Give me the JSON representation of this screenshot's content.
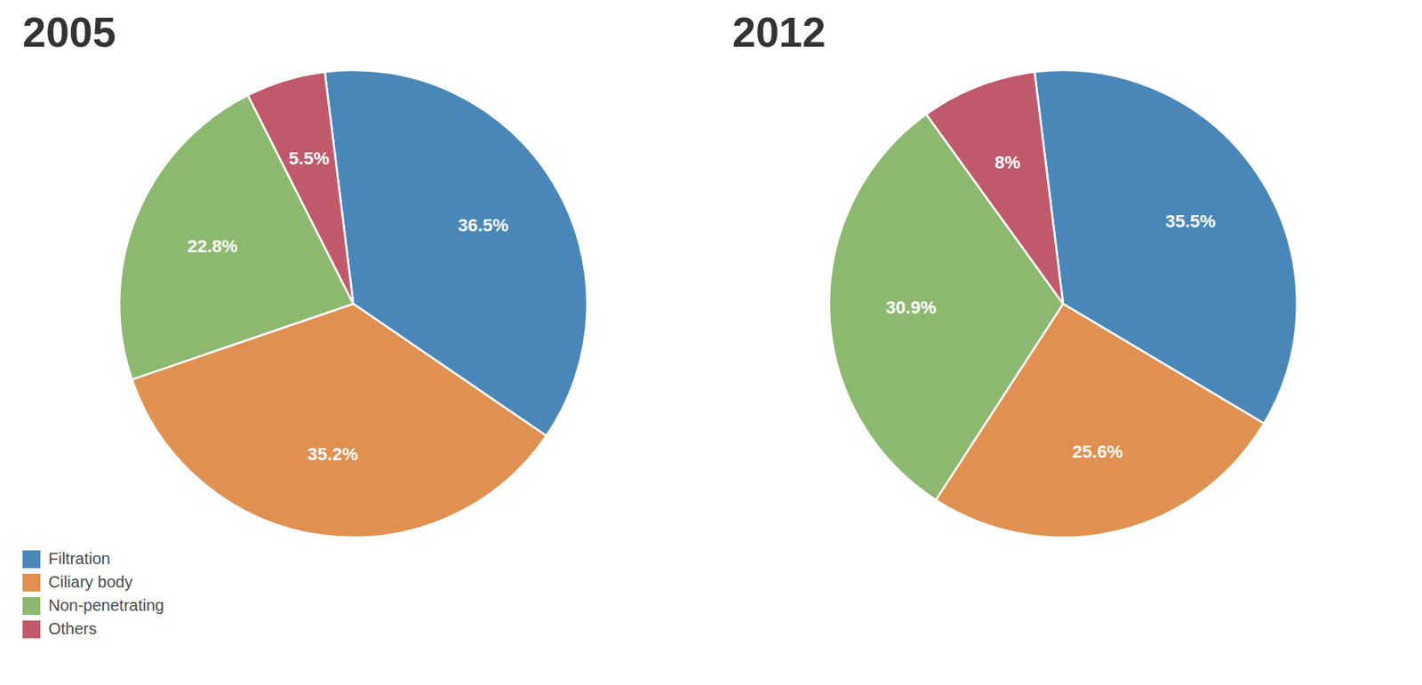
{
  "chart_data": [
    {
      "type": "pie",
      "title": "2005",
      "categories": [
        "Filtration",
        "Ciliary body",
        "Non-penetrating",
        "Others"
      ],
      "values": [
        36.5,
        35.2,
        22.8,
        5.5
      ],
      "value_labels": [
        "36.5%",
        "35.2%",
        "22.8%",
        "5.5%"
      ],
      "colors": [
        "#4a87b8",
        "#e09050",
        "#8db870",
        "#c05a6a"
      ],
      "data_labels": true,
      "legend": "lower left"
    },
    {
      "type": "pie",
      "title": "2012",
      "categories": [
        "Filtration",
        "Ciliary body",
        "Non-penetrating",
        "Others"
      ],
      "values": [
        35.5,
        25.6,
        30.9,
        8.0
      ],
      "value_labels": [
        "35.5%",
        "25.6%",
        "30.9%",
        "8%"
      ],
      "colors": [
        "#4a87b8",
        "#e09050",
        "#8db870",
        "#c05a6a"
      ],
      "data_labels": true
    }
  ]
}
